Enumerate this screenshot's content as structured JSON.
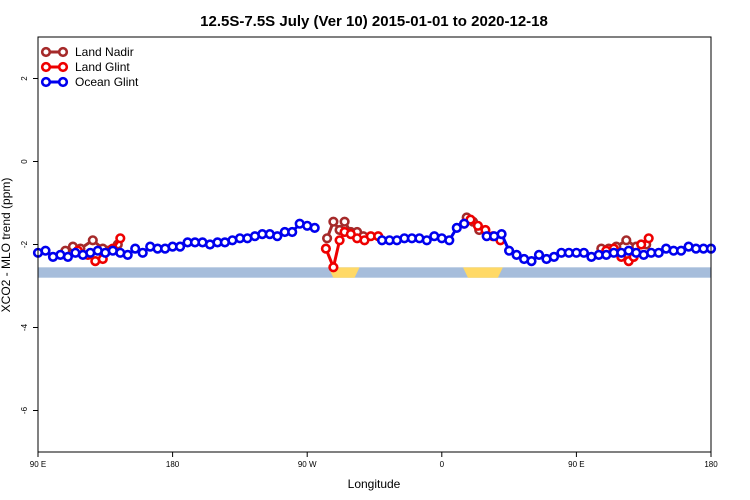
{
  "chart_data": {
    "type": "line",
    "title": "12.5S-7.5S July (Ver 10)   2015-01-01 to 2020-12-18",
    "xlabel": "Longitude",
    "ylabel": "XCO2 - MLO trend (ppm)",
    "xlim": [
      -90,
      180
    ],
    "ylim": [
      -7,
      3
    ],
    "x_ticks": [
      {
        "value": -90,
        "label": "90 E"
      },
      {
        "value": -36,
        "label": "180"
      },
      {
        "value": 18,
        "label": "90 W"
      },
      {
        "value": 72,
        "label": "0"
      },
      {
        "value": 126,
        "label": "90 E"
      },
      {
        "value": 180,
        "label": "180"
      }
    ],
    "y_ticks": [
      {
        "value": 2,
        "label": "2"
      },
      {
        "value": 0,
        "label": "0"
      },
      {
        "value": -2,
        "label": "-2"
      },
      {
        "value": -4,
        "label": "-4"
      },
      {
        "value": -6,
        "label": "-6"
      }
    ],
    "legend_position": "top-left",
    "grid": false,
    "land_strip": {
      "y_range": [
        -2.55,
        -2.8
      ],
      "ocean_color": "#a6bddb",
      "land_color": "#ffd966",
      "land_spans": [
        [
          26.5,
          39
        ],
        [
          80.5,
          96.5
        ]
      ]
    },
    "series": [
      {
        "name": "Land Nadir",
        "color": "#a52a2a",
        "segments": [
          [
            [
              -79,
              -2.15
            ],
            [
              -76,
              -2.05
            ],
            [
              -73,
              -2.1
            ],
            [
              -68,
              -1.9
            ],
            [
              -64,
              -2.1
            ],
            [
              -58,
              -2.0
            ]
          ],
          [
            [
              26,
              -1.85
            ],
            [
              28.5,
              -1.45
            ],
            [
              31,
              -1.65
            ],
            [
              33,
              -1.45
            ],
            [
              35.5,
              -1.7
            ],
            [
              38,
              -1.7
            ],
            [
              40.5,
              -1.8
            ]
          ],
          [
            [
              82,
              -1.35
            ],
            [
              84.5,
              -1.45
            ],
            [
              87,
              -1.65
            ]
          ],
          [
            [
              136,
              -2.1
            ],
            [
              139,
              -2.1
            ],
            [
              142,
              -2.05
            ],
            [
              146,
              -1.9
            ],
            [
              150,
              -2.05
            ],
            [
              154,
              -2.0
            ]
          ]
        ]
      },
      {
        "name": "Land Glint",
        "color": "#ee0000",
        "segments": [
          [
            [
              -74,
              -2.15
            ],
            [
              -70,
              -2.25
            ],
            [
              -67,
              -2.4
            ],
            [
              -64,
              -2.35
            ],
            [
              -60,
              -2.1
            ],
            [
              -57,
              -1.85
            ]
          ],
          [
            [
              25.5,
              -2.1
            ],
            [
              28.5,
              -2.55
            ],
            [
              31,
              -1.9
            ],
            [
              33,
              -1.7
            ],
            [
              35.5,
              -1.75
            ],
            [
              38,
              -1.85
            ],
            [
              41,
              -1.9
            ],
            [
              43.5,
              -1.8
            ],
            [
              46.5,
              -1.8
            ]
          ],
          [
            [
              81,
              -1.5
            ],
            [
              83.5,
              -1.4
            ],
            [
              86.5,
              -1.55
            ],
            [
              89.5,
              -1.65
            ],
            [
              92.5,
              -1.8
            ],
            [
              95.5,
              -1.9
            ]
          ],
          [
            [
              138,
              -2.15
            ],
            [
              141,
              -2.1
            ],
            [
              144,
              -2.3
            ],
            [
              147,
              -2.4
            ],
            [
              149,
              -2.3
            ],
            [
              152,
              -2.0
            ],
            [
              155,
              -1.85
            ]
          ]
        ]
      },
      {
        "name": "Ocean Glint",
        "color": "#0000ee",
        "segments": [
          [
            [
              -90,
              -2.2
            ],
            [
              -87,
              -2.15
            ],
            [
              -84,
              -2.3
            ],
            [
              -81,
              -2.25
            ],
            [
              -78,
              -2.3
            ],
            [
              -75,
              -2.2
            ],
            [
              -72,
              -2.25
            ],
            [
              -69,
              -2.2
            ],
            [
              -66,
              -2.15
            ],
            [
              -63,
              -2.2
            ],
            [
              -60,
              -2.15
            ],
            [
              -57,
              -2.2
            ],
            [
              -54,
              -2.25
            ],
            [
              -51,
              -2.1
            ],
            [
              -48,
              -2.2
            ],
            [
              -45,
              -2.05
            ],
            [
              -42,
              -2.1
            ],
            [
              -39,
              -2.1
            ],
            [
              -36,
              -2.05
            ],
            [
              -33,
              -2.05
            ],
            [
              -30,
              -1.95
            ],
            [
              -27,
              -1.95
            ],
            [
              -24,
              -1.95
            ],
            [
              -21,
              -2.0
            ],
            [
              -18,
              -1.95
            ],
            [
              -15,
              -1.95
            ],
            [
              -12,
              -1.9
            ],
            [
              -9,
              -1.85
            ],
            [
              -6,
              -1.85
            ],
            [
              -3,
              -1.8
            ],
            [
              0,
              -1.75
            ],
            [
              3,
              -1.75
            ],
            [
              6,
              -1.8
            ],
            [
              9,
              -1.7
            ],
            [
              12,
              -1.7
            ],
            [
              15,
              -1.5
            ],
            [
              18,
              -1.55
            ],
            [
              21,
              -1.6
            ]
          ],
          [
            [
              48,
              -1.9
            ],
            [
              51,
              -1.9
            ],
            [
              54,
              -1.9
            ],
            [
              57,
              -1.85
            ],
            [
              60,
              -1.85
            ],
            [
              63,
              -1.85
            ],
            [
              66,
              -1.9
            ],
            [
              69,
              -1.8
            ],
            [
              72,
              -1.85
            ],
            [
              75,
              -1.9
            ],
            [
              78,
              -1.6
            ],
            [
              81,
              -1.5
            ]
          ],
          [
            [
              90,
              -1.8
            ],
            [
              93,
              -1.8
            ],
            [
              96,
              -1.75
            ],
            [
              99,
              -2.15
            ],
            [
              102,
              -2.25
            ],
            [
              105,
              -2.35
            ],
            [
              108,
              -2.4
            ],
            [
              111,
              -2.25
            ],
            [
              114,
              -2.35
            ],
            [
              117,
              -2.3
            ],
            [
              120,
              -2.2
            ],
            [
              123,
              -2.2
            ],
            [
              126,
              -2.2
            ],
            [
              129,
              -2.2
            ],
            [
              132,
              -2.3
            ],
            [
              135,
              -2.25
            ],
            [
              138,
              -2.25
            ],
            [
              141,
              -2.2
            ],
            [
              144,
              -2.2
            ],
            [
              147,
              -2.15
            ],
            [
              150,
              -2.2
            ],
            [
              153,
              -2.25
            ],
            [
              156,
              -2.2
            ],
            [
              159,
              -2.2
            ],
            [
              162,
              -2.1
            ],
            [
              165,
              -2.15
            ],
            [
              168,
              -2.15
            ],
            [
              171,
              -2.05
            ],
            [
              174,
              -2.1
            ],
            [
              177,
              -2.1
            ],
            [
              180,
              -2.1
            ]
          ]
        ]
      }
    ]
  }
}
